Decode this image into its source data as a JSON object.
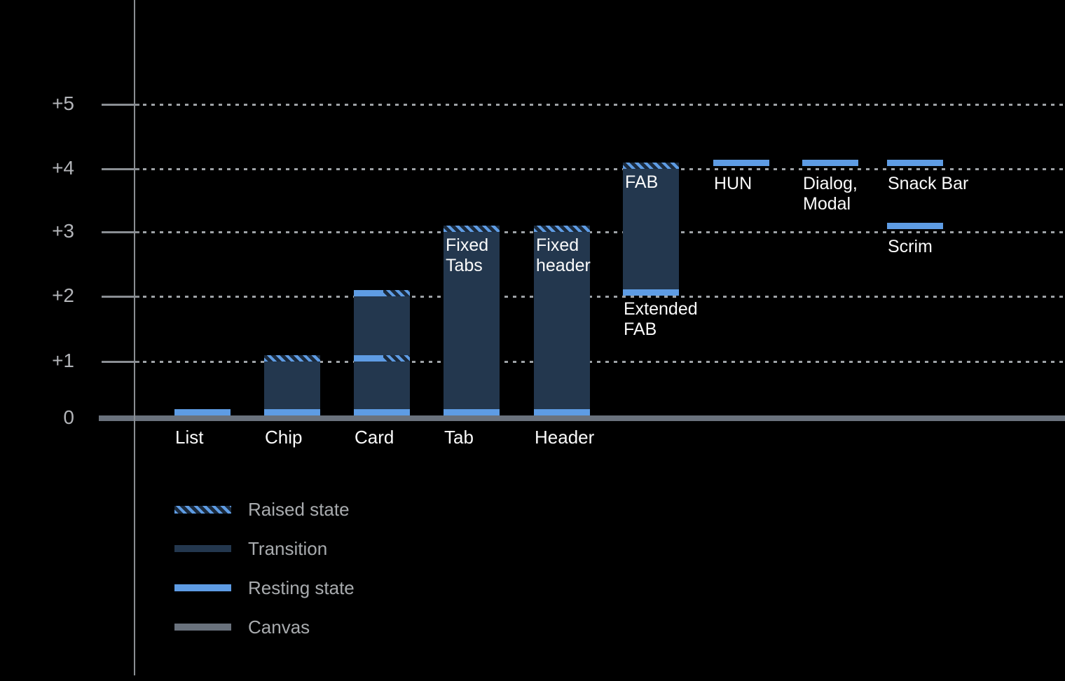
{
  "chart_data": {
    "type": "bar",
    "title": "",
    "xlabel": "",
    "ylabel": "",
    "ylim": [
      0,
      5
    ],
    "grid": "dotted horizontal gridlines at each elevation level",
    "legend_position": "bottom-left",
    "colors": {
      "background": "#000000",
      "transition": "#23374E",
      "resting_state": "#5E9CE4",
      "raised_state_hatch": "#5E9CE4",
      "canvas": "#6A727D",
      "gridline": "#9EA2A6",
      "axis": "#8A8E93",
      "axis_label_text": "#B2B4B8",
      "bar_label_text": "#FAFAFA",
      "legend_text": "#A8ABAE"
    },
    "axis": {
      "levels": [
        {
          "value": 5,
          "label": "+5"
        },
        {
          "value": 4,
          "label": "+4"
        },
        {
          "value": 3,
          "label": "+3"
        },
        {
          "value": 2,
          "label": "+2"
        },
        {
          "value": 1,
          "label": "+1"
        },
        {
          "value": 0,
          "label": "0"
        }
      ]
    },
    "bars": [
      {
        "id": "list",
        "label": "List",
        "segments": [
          {
            "kind": "resting",
            "at": 0
          }
        ]
      },
      {
        "id": "chip",
        "label": "Chip",
        "segments": [
          {
            "kind": "body",
            "from": 0,
            "to": 1.1
          },
          {
            "kind": "raised",
            "at": 1
          },
          {
            "kind": "resting",
            "at": 0
          }
        ]
      },
      {
        "id": "card",
        "label": "Card",
        "segments": [
          {
            "kind": "body",
            "from": 0,
            "to": 2.1
          },
          {
            "kind": "mixed",
            "at": 2
          },
          {
            "kind": "mixed",
            "at": 1
          },
          {
            "kind": "resting",
            "at": 0
          }
        ]
      },
      {
        "id": "tab",
        "label": "Tab",
        "inner_label": [
          "Fixed",
          "Tabs"
        ],
        "segments": [
          {
            "kind": "body",
            "from": 0,
            "to": 3.1
          },
          {
            "kind": "raised",
            "at": 3
          },
          {
            "kind": "resting",
            "at": 0
          }
        ]
      },
      {
        "id": "header",
        "label": "Header",
        "inner_label": [
          "Fixed",
          "header"
        ],
        "segments": [
          {
            "kind": "body",
            "from": 0,
            "to": 3.1
          },
          {
            "kind": "raised",
            "at": 3
          },
          {
            "kind": "resting",
            "at": 0
          }
        ]
      },
      {
        "id": "fab",
        "inner_label": [
          "FAB"
        ],
        "below_label": [
          "Extended",
          "FAB"
        ],
        "segments": [
          {
            "kind": "body",
            "from": 2,
            "to": 4.1
          },
          {
            "kind": "raised",
            "at": 4
          },
          {
            "kind": "resting",
            "at": 2
          }
        ]
      },
      {
        "id": "hun",
        "below_label": [
          "HUN"
        ],
        "segments": [
          {
            "kind": "resting",
            "at": 4
          }
        ]
      },
      {
        "id": "dialog",
        "below_label": [
          "Dialog,",
          "Modal"
        ],
        "segments": [
          {
            "kind": "resting",
            "at": 4
          }
        ]
      },
      {
        "id": "snackbar",
        "below_label": [
          "Snack Bar"
        ],
        "segments": [
          {
            "kind": "resting",
            "at": 4
          }
        ]
      },
      {
        "id": "scrim",
        "below_label": [
          "Scrim"
        ],
        "segments": [
          {
            "kind": "resting",
            "at": 3
          }
        ]
      }
    ],
    "legend": [
      {
        "label": "Raised state",
        "swatch": "raised"
      },
      {
        "label": "Transition",
        "swatch": "transition"
      },
      {
        "label": "Resting state",
        "swatch": "resting"
      },
      {
        "label": "Canvas",
        "swatch": "canvas"
      }
    ]
  }
}
